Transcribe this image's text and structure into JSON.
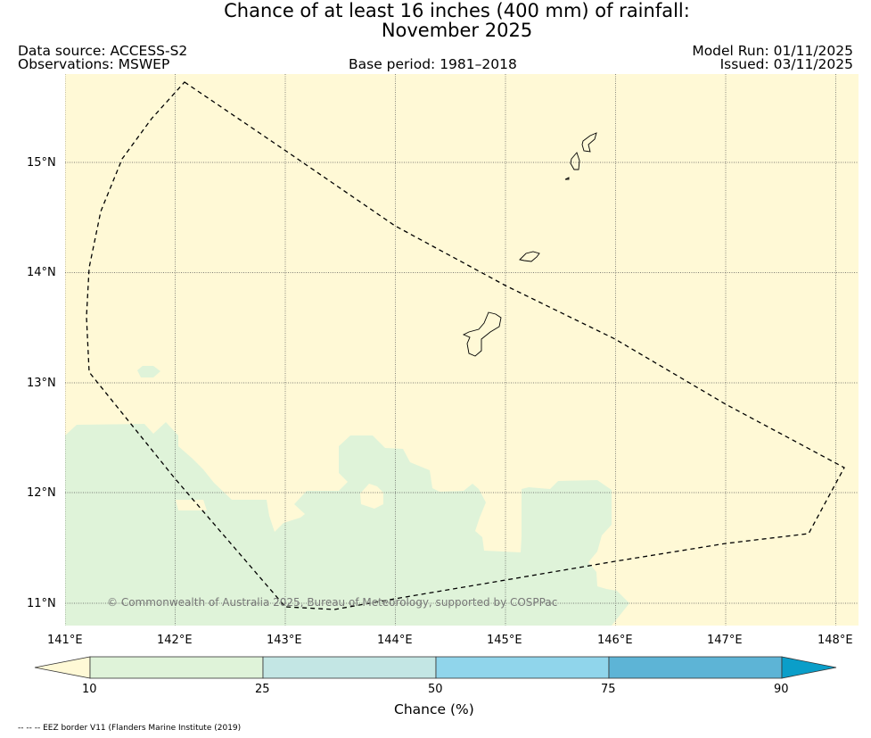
{
  "title": {
    "line1": "Chance of at least 16 inches (400  mm) of rainfall:",
    "line2": "November 2025"
  },
  "meta": {
    "data_source": "Data source: ACCESS-S2",
    "observations": "Observations: MSWEP",
    "base_period": "Base period: 1981–2018",
    "model_run": "Model Run: 01/11/2025",
    "issued": "Issued: 03/11/2025"
  },
  "map": {
    "lon_ticks": [
      "141°E",
      "142°E",
      "143°E",
      "144°E",
      "145°E",
      "146°E",
      "147°E",
      "148°E"
    ],
    "lat_ticks": [
      "15°N",
      "14°N",
      "13°N",
      "11°N"
    ],
    "lat_ticks_extra": [
      "12°N"
    ],
    "copyright": "© Commonwealth of Australia 2025, Bureau of Meteorology, supported by COSPPac",
    "colors": {
      "below_10": "#fff9d6",
      "10_25": "#dff3d9",
      "25_50": "#c3e6e4",
      "50_75": "#90d5eb",
      "75_90": "#5db4d6",
      "above_90": "#0a9ec9"
    }
  },
  "colorbar": {
    "ticks": [
      "10",
      "25",
      "50",
      "75",
      "90"
    ],
    "label": "Chance (%)"
  },
  "footnote": "-- -- -- EEZ border V11 (Flanders Marine Institute (2019)"
}
